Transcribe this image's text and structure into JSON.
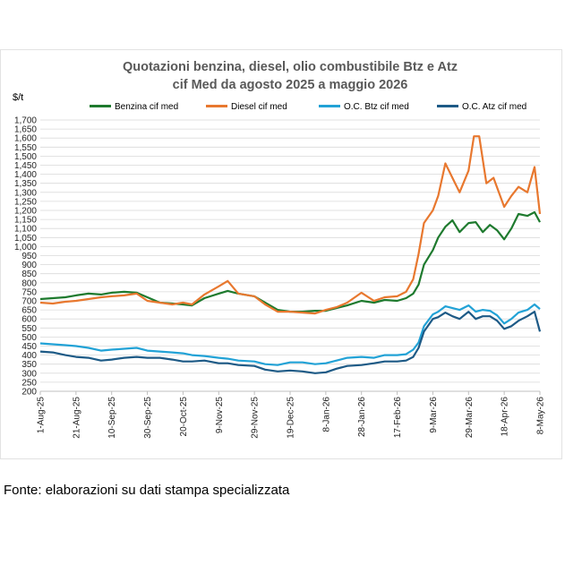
{
  "chart_data": {
    "type": "line",
    "title_line1": "Quotazioni benzina, diesel, olio combustibile Btz e Atz",
    "title_line2": "cif Med da agosto 2025 a maggio  2026",
    "ylabel": "$/t",
    "ylim": [
      200,
      1700
    ],
    "yticks": [
      "1,700",
      "1,650",
      "1,600",
      "1,550",
      "1,500",
      "1,450",
      "1,400",
      "1,350",
      "1,300",
      "1,250",
      "1,200",
      "1,150",
      "1,100",
      "1,050",
      "1,000",
      "950",
      "900",
      "850",
      "800",
      "750",
      "700",
      "650",
      "600",
      "550",
      "500",
      "450",
      "400",
      "350",
      "300",
      "250",
      "200"
    ],
    "x_range": [
      "2025-08-01",
      "2026-05-08"
    ],
    "x_tick_labels": [
      {
        "label": "1-Aug-25",
        "date": "2025-08-01"
      },
      {
        "label": "21-Aug-25",
        "date": "2025-08-21"
      },
      {
        "label": "10-Sep-25",
        "date": "2025-09-10"
      },
      {
        "label": "30-Sep-25",
        "date": "2025-09-30"
      },
      {
        "label": "20-Oct-25",
        "date": "2025-10-20"
      },
      {
        "label": "9-Nov-25",
        "date": "2025-11-09"
      },
      {
        "label": "29-Nov-25",
        "date": "2025-11-29"
      },
      {
        "label": "19-Dec-25",
        "date": "2025-12-19"
      },
      {
        "label": "8-Jan-26",
        "date": "2026-01-08"
      },
      {
        "label": "28-Jan-26",
        "date": "2026-01-28"
      },
      {
        "label": "17-Feb-26",
        "date": "2026-02-17"
      },
      {
        "label": "9-Mar-26",
        "date": "2026-03-09"
      },
      {
        "label": "29-Mar-26",
        "date": "2026-03-29"
      },
      {
        "label": "18-Apr-26",
        "date": "2026-04-18"
      },
      {
        "label": "8-May-26",
        "date": "2026-05-08"
      }
    ],
    "grid": true,
    "legend_position": "top",
    "series": [
      {
        "name": "Benzina cif med",
        "color": "#1e7a2e",
        "points": [
          [
            "2025-08-01",
            710
          ],
          [
            "2025-08-08",
            715
          ],
          [
            "2025-08-15",
            720
          ],
          [
            "2025-08-21",
            730
          ],
          [
            "2025-08-28",
            740
          ],
          [
            "2025-09-04",
            735
          ],
          [
            "2025-09-10",
            745
          ],
          [
            "2025-09-17",
            750
          ],
          [
            "2025-09-24",
            745
          ],
          [
            "2025-09-30",
            720
          ],
          [
            "2025-10-07",
            690
          ],
          [
            "2025-10-14",
            685
          ],
          [
            "2025-10-20",
            680
          ],
          [
            "2025-10-25",
            675
          ],
          [
            "2025-11-01",
            715
          ],
          [
            "2025-11-09",
            740
          ],
          [
            "2025-11-14",
            755
          ],
          [
            "2025-11-20",
            740
          ],
          [
            "2025-11-29",
            725
          ],
          [
            "2025-12-05",
            690
          ],
          [
            "2025-12-12",
            650
          ],
          [
            "2025-12-19",
            640
          ],
          [
            "2025-12-26",
            640
          ],
          [
            "2026-01-02",
            645
          ],
          [
            "2026-01-08",
            645
          ],
          [
            "2026-01-14",
            660
          ],
          [
            "2026-01-20",
            675
          ],
          [
            "2026-01-28",
            700
          ],
          [
            "2026-02-04",
            690
          ],
          [
            "2026-02-10",
            705
          ],
          [
            "2026-02-17",
            700
          ],
          [
            "2026-02-22",
            715
          ],
          [
            "2026-02-26",
            740
          ],
          [
            "2026-03-01",
            790
          ],
          [
            "2026-03-04",
            900
          ],
          [
            "2026-03-09",
            980
          ],
          [
            "2026-03-12",
            1050
          ],
          [
            "2026-03-16",
            1110
          ],
          [
            "2026-03-20",
            1145
          ],
          [
            "2026-03-24",
            1080
          ],
          [
            "2026-03-29",
            1130
          ],
          [
            "2026-04-02",
            1135
          ],
          [
            "2026-04-06",
            1080
          ],
          [
            "2026-04-10",
            1120
          ],
          [
            "2026-04-14",
            1090
          ],
          [
            "2026-04-18",
            1040
          ],
          [
            "2026-04-22",
            1100
          ],
          [
            "2026-04-26",
            1180
          ],
          [
            "2026-05-01",
            1170
          ],
          [
            "2026-05-05",
            1190
          ],
          [
            "2026-05-08",
            1135
          ]
        ]
      },
      {
        "name": "Diesel cif med",
        "color": "#e8782f",
        "points": [
          [
            "2025-08-01",
            690
          ],
          [
            "2025-08-08",
            685
          ],
          [
            "2025-08-15",
            695
          ],
          [
            "2025-08-21",
            700
          ],
          [
            "2025-08-28",
            710
          ],
          [
            "2025-09-04",
            720
          ],
          [
            "2025-09-10",
            725
          ],
          [
            "2025-09-17",
            730
          ],
          [
            "2025-09-24",
            740
          ],
          [
            "2025-09-30",
            700
          ],
          [
            "2025-10-07",
            690
          ],
          [
            "2025-10-14",
            680
          ],
          [
            "2025-10-20",
            690
          ],
          [
            "2025-10-25",
            680
          ],
          [
            "2025-11-01",
            735
          ],
          [
            "2025-11-09",
            780
          ],
          [
            "2025-11-14",
            810
          ],
          [
            "2025-11-20",
            740
          ],
          [
            "2025-11-29",
            725
          ],
          [
            "2025-12-05",
            680
          ],
          [
            "2025-12-12",
            640
          ],
          [
            "2025-12-19",
            640
          ],
          [
            "2025-12-26",
            635
          ],
          [
            "2026-01-02",
            630
          ],
          [
            "2026-01-08",
            650
          ],
          [
            "2026-01-14",
            665
          ],
          [
            "2026-01-20",
            690
          ],
          [
            "2026-01-28",
            745
          ],
          [
            "2026-02-04",
            700
          ],
          [
            "2026-02-10",
            720
          ],
          [
            "2026-02-17",
            725
          ],
          [
            "2026-02-22",
            750
          ],
          [
            "2026-02-26",
            820
          ],
          [
            "2026-03-01",
            960
          ],
          [
            "2026-03-04",
            1130
          ],
          [
            "2026-03-09",
            1200
          ],
          [
            "2026-03-12",
            1280
          ],
          [
            "2026-03-16",
            1460
          ],
          [
            "2026-03-20",
            1380
          ],
          [
            "2026-03-24",
            1300
          ],
          [
            "2026-03-29",
            1420
          ],
          [
            "2026-04-01",
            1610
          ],
          [
            "2026-04-04",
            1610
          ],
          [
            "2026-04-08",
            1350
          ],
          [
            "2026-04-12",
            1380
          ],
          [
            "2026-04-18",
            1220
          ],
          [
            "2026-04-22",
            1280
          ],
          [
            "2026-04-26",
            1330
          ],
          [
            "2026-05-01",
            1300
          ],
          [
            "2026-05-05",
            1440
          ],
          [
            "2026-05-08",
            1180
          ]
        ]
      },
      {
        "name": "O.C. Btz cif med",
        "color": "#22a2d6",
        "points": [
          [
            "2025-08-01",
            465
          ],
          [
            "2025-08-08",
            460
          ],
          [
            "2025-08-15",
            455
          ],
          [
            "2025-08-21",
            450
          ],
          [
            "2025-08-28",
            440
          ],
          [
            "2025-09-04",
            425
          ],
          [
            "2025-09-10",
            430
          ],
          [
            "2025-09-17",
            435
          ],
          [
            "2025-09-24",
            440
          ],
          [
            "2025-09-30",
            425
          ],
          [
            "2025-10-07",
            420
          ],
          [
            "2025-10-14",
            415
          ],
          [
            "2025-10-20",
            410
          ],
          [
            "2025-10-25",
            400
          ],
          [
            "2025-11-01",
            395
          ],
          [
            "2025-11-09",
            385
          ],
          [
            "2025-11-14",
            380
          ],
          [
            "2025-11-20",
            370
          ],
          [
            "2025-11-29",
            365
          ],
          [
            "2025-12-05",
            350
          ],
          [
            "2025-12-12",
            345
          ],
          [
            "2025-12-19",
            360
          ],
          [
            "2025-12-26",
            360
          ],
          [
            "2026-01-02",
            350
          ],
          [
            "2026-01-08",
            355
          ],
          [
            "2026-01-14",
            370
          ],
          [
            "2026-01-20",
            385
          ],
          [
            "2026-01-28",
            390
          ],
          [
            "2026-02-04",
            385
          ],
          [
            "2026-02-10",
            400
          ],
          [
            "2026-02-17",
            400
          ],
          [
            "2026-02-22",
            405
          ],
          [
            "2026-02-26",
            430
          ],
          [
            "2026-03-01",
            470
          ],
          [
            "2026-03-04",
            560
          ],
          [
            "2026-03-09",
            625
          ],
          [
            "2026-03-12",
            640
          ],
          [
            "2026-03-16",
            670
          ],
          [
            "2026-03-20",
            660
          ],
          [
            "2026-03-24",
            650
          ],
          [
            "2026-03-29",
            675
          ],
          [
            "2026-04-02",
            640
          ],
          [
            "2026-04-06",
            650
          ],
          [
            "2026-04-10",
            645
          ],
          [
            "2026-04-14",
            620
          ],
          [
            "2026-04-18",
            575
          ],
          [
            "2026-04-22",
            600
          ],
          [
            "2026-04-26",
            635
          ],
          [
            "2026-05-01",
            650
          ],
          [
            "2026-05-05",
            680
          ],
          [
            "2026-05-08",
            655
          ]
        ]
      },
      {
        "name": "O.C. Atz cif med",
        "color": "#1d5a86",
        "points": [
          [
            "2025-08-01",
            420
          ],
          [
            "2025-08-08",
            415
          ],
          [
            "2025-08-15",
            400
          ],
          [
            "2025-08-21",
            390
          ],
          [
            "2025-08-28",
            385
          ],
          [
            "2025-09-04",
            370
          ],
          [
            "2025-09-10",
            375
          ],
          [
            "2025-09-17",
            385
          ],
          [
            "2025-09-24",
            390
          ],
          [
            "2025-09-30",
            385
          ],
          [
            "2025-10-07",
            385
          ],
          [
            "2025-10-14",
            375
          ],
          [
            "2025-10-20",
            365
          ],
          [
            "2025-10-25",
            365
          ],
          [
            "2025-11-01",
            370
          ],
          [
            "2025-11-09",
            355
          ],
          [
            "2025-11-14",
            355
          ],
          [
            "2025-11-20",
            345
          ],
          [
            "2025-11-29",
            340
          ],
          [
            "2025-12-05",
            320
          ],
          [
            "2025-12-12",
            310
          ],
          [
            "2025-12-19",
            315
          ],
          [
            "2025-12-26",
            310
          ],
          [
            "2026-01-02",
            300
          ],
          [
            "2026-01-08",
            305
          ],
          [
            "2026-01-14",
            325
          ],
          [
            "2026-01-20",
            340
          ],
          [
            "2026-01-28",
            345
          ],
          [
            "2026-02-04",
            355
          ],
          [
            "2026-02-10",
            365
          ],
          [
            "2026-02-17",
            365
          ],
          [
            "2026-02-22",
            370
          ],
          [
            "2026-02-26",
            390
          ],
          [
            "2026-03-01",
            440
          ],
          [
            "2026-03-04",
            530
          ],
          [
            "2026-03-09",
            600
          ],
          [
            "2026-03-12",
            610
          ],
          [
            "2026-03-16",
            635
          ],
          [
            "2026-03-20",
            615
          ],
          [
            "2026-03-24",
            600
          ],
          [
            "2026-03-29",
            640
          ],
          [
            "2026-04-02",
            600
          ],
          [
            "2026-04-06",
            615
          ],
          [
            "2026-04-10",
            615
          ],
          [
            "2026-04-14",
            590
          ],
          [
            "2026-04-18",
            545
          ],
          [
            "2026-04-22",
            560
          ],
          [
            "2026-04-26",
            590
          ],
          [
            "2026-05-01",
            615
          ],
          [
            "2026-05-05",
            640
          ],
          [
            "2026-05-08",
            530
          ]
        ]
      }
    ]
  },
  "footnote": "Fonte: elaborazioni su dati stampa specializzata"
}
